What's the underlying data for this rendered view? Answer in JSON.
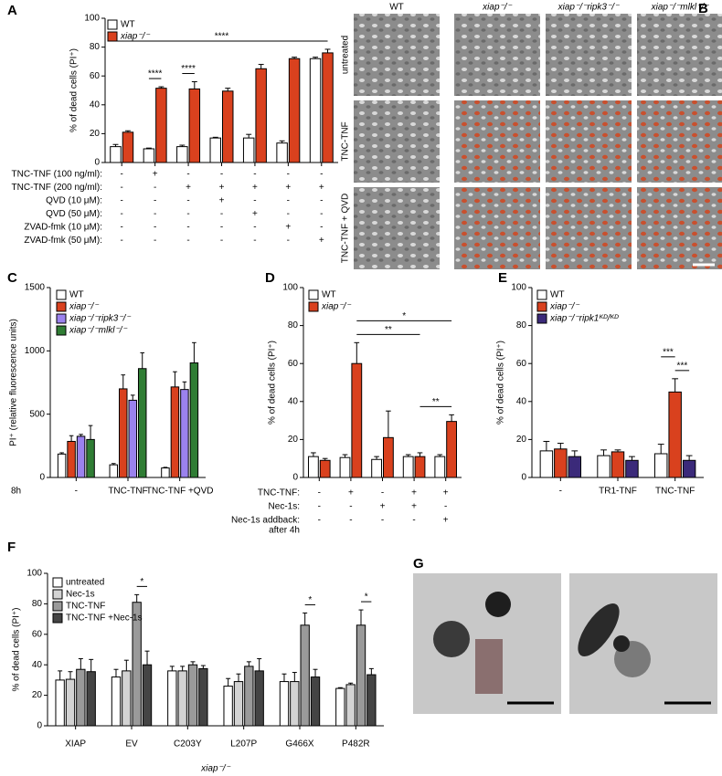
{
  "chart_data": [
    {
      "type": "bar",
      "label": "A",
      "ylabel": "% of dead cells (PI⁺)",
      "ylim": [
        0,
        100
      ],
      "yticks": [
        0,
        20,
        40,
        60,
        80,
        100
      ],
      "categories": [
        null,
        null,
        null,
        null,
        null,
        null,
        null
      ],
      "series": [
        {
          "name": "WT",
          "color": "#ffffff",
          "values": [
            11,
            9.5,
            11,
            17,
            17,
            13.5,
            72
          ],
          "errors": [
            1.5,
            0.5,
            1,
            0.5,
            2.5,
            1.5,
            1
          ]
        },
        {
          "name": "xiap⁻/⁻",
          "color": "#d9411e",
          "values": [
            21,
            51.5,
            51,
            49.5,
            65,
            72,
            76
          ],
          "errors": [
            1,
            1,
            5,
            2,
            3,
            1,
            2.5
          ]
        }
      ],
      "annotations": [
        {
          "text": "****",
          "from": [
            1,
            0
          ],
          "to": [
            1,
            1
          ]
        },
        {
          "text": "****",
          "from": [
            2,
            0
          ],
          "to": [
            2,
            1
          ]
        },
        {
          "text": "****",
          "from": [
            0,
            0
          ],
          "to": [
            6,
            1
          ]
        }
      ],
      "conditions": [
        {
          "label": "TNC-TNF (100 ng/ml):",
          "values": [
            "-",
            "+",
            "-",
            "-",
            "-",
            "-",
            "-"
          ]
        },
        {
          "label": "TNC-TNF (200 ng/ml):",
          "values": [
            "-",
            "-",
            "+",
            "+",
            "+",
            "+",
            "+"
          ]
        },
        {
          "label": "QVD (10 μM):",
          "values": [
            "-",
            "-",
            "-",
            "+",
            "-",
            "-",
            "-"
          ]
        },
        {
          "label": "QVD (50 μM):",
          "values": [
            "-",
            "-",
            "-",
            "-",
            "+",
            "-",
            "-"
          ]
        },
        {
          "label": "ZVAD-fmk (10 μM):",
          "values": [
            "-",
            "-",
            "-",
            "-",
            "-",
            "+",
            "-"
          ]
        },
        {
          "label": "ZVAD-fmk (50 μM):",
          "values": [
            "-",
            "-",
            "-",
            "-",
            "-",
            "-",
            "+"
          ]
        }
      ]
    },
    {
      "type": "bar",
      "label": "C",
      "ylabel": "PI⁺ (relative fluorescence units)",
      "ylim": [
        0,
        1500
      ],
      "yticks": [
        0,
        500,
        1000,
        1500
      ],
      "note": "8h",
      "categories": [
        "-",
        "TNC-TNF",
        "TNC-TNF +QVD"
      ],
      "series": [
        {
          "name": "WT",
          "color": "#ffffff",
          "values": [
            185,
            100,
            75
          ],
          "errors": [
            10,
            10,
            5
          ]
        },
        {
          "name": "xiap⁻/⁻",
          "color": "#d9411e",
          "values": [
            285,
            700,
            715
          ],
          "errors": [
            45,
            110,
            120
          ]
        },
        {
          "name": "xiap⁻/⁻ripk3⁻/⁻",
          "color": "#9b82ee",
          "values": [
            325,
            610,
            695
          ],
          "errors": [
            15,
            40,
            60
          ]
        },
        {
          "name": "xiap⁻/⁻mlkl⁻/⁻",
          "color": "#2f7d34",
          "values": [
            300,
            860,
            905
          ],
          "errors": [
            110,
            125,
            160
          ]
        }
      ]
    },
    {
      "type": "bar",
      "label": "D",
      "ylabel": "% of dead cells (PI⁺)",
      "ylim": [
        0,
        100
      ],
      "yticks": [
        0,
        20,
        40,
        60,
        80,
        100
      ],
      "categories": [
        null,
        null,
        null,
        null,
        null
      ],
      "series": [
        {
          "name": "WT",
          "color": "#ffffff",
          "values": [
            11,
            10.5,
            9.5,
            11,
            11
          ],
          "errors": [
            2,
            1.5,
            1.5,
            1,
            1
          ]
        },
        {
          "name": "xiap⁻/⁻",
          "color": "#d9411e",
          "values": [
            9,
            60,
            21,
            11,
            29.5
          ],
          "errors": [
            1,
            11,
            14,
            2,
            3.5
          ]
        }
      ],
      "annotations": [
        {
          "text": "**",
          "from": [
            1,
            1
          ],
          "to": [
            3,
            1
          ]
        },
        {
          "text": "*",
          "from": [
            1,
            1
          ],
          "to": [
            4,
            1
          ]
        },
        {
          "text": "**",
          "from": [
            3,
            1
          ],
          "to": [
            4,
            1
          ]
        }
      ],
      "conditions": [
        {
          "label": [
            "TNC-TNF:"
          ],
          "values": [
            "-",
            "+",
            "-",
            "+",
            "+"
          ]
        },
        {
          "label": [
            "Nec-1s:"
          ],
          "values": [
            "-",
            "-",
            "+",
            "+",
            "-"
          ]
        },
        {
          "label": [
            "Nec-1s addback:",
            "after 4h"
          ],
          "values": [
            "-",
            "-",
            "-",
            "-",
            "+"
          ]
        }
      ]
    },
    {
      "type": "bar",
      "label": "E",
      "ylabel": "% of dead cells (PI⁺)",
      "ylim": [
        0,
        100
      ],
      "yticks": [
        0,
        20,
        40,
        60,
        80,
        100
      ],
      "categories": [
        "-",
        "TR1-TNF",
        "TNC-TNF"
      ],
      "series": [
        {
          "name": "WT",
          "color": "#ffffff",
          "values": [
            14,
            11.5,
            12.5
          ],
          "errors": [
            5,
            3,
            5
          ]
        },
        {
          "name": "xiap⁻/⁻",
          "color": "#d9411e",
          "values": [
            15,
            13.5,
            45
          ],
          "errors": [
            3,
            1,
            7
          ]
        },
        {
          "name": "xiap⁻/⁻ripk1ᴷᴰ/ᴷᴰ",
          "color": "#3b2a7a",
          "values": [
            11,
            9,
            9
          ],
          "errors": [
            3,
            2,
            2.5
          ]
        }
      ],
      "annotations": [
        {
          "text": "***",
          "from": [
            2,
            1
          ],
          "to": [
            2,
            2
          ]
        },
        {
          "text": "***",
          "from": [
            2,
            0
          ],
          "to": [
            2,
            1
          ]
        }
      ]
    },
    {
      "type": "bar",
      "label": "F",
      "ylabel": "% of dead cells (PI⁺)",
      "xlabel": "xiap⁻/⁻",
      "ylim": [
        0,
        100
      ],
      "yticks": [
        0,
        20,
        40,
        60,
        80,
        100
      ],
      "categories": [
        "XIAP",
        "EV",
        "C203Y",
        "L207P",
        "G466X",
        "P482R"
      ],
      "series": [
        {
          "name": "untreated",
          "color": "#ffffff",
          "values": [
            30,
            32,
            36,
            26,
            29,
            24.5
          ],
          "errors": [
            6,
            5,
            3,
            5,
            5,
            0.5
          ]
        },
        {
          "name": "Nec-1s",
          "color": "#d3d3d3",
          "values": [
            30.5,
            36,
            36,
            29,
            29,
            27
          ],
          "errors": [
            5,
            7,
            3,
            5,
            6,
            1
          ]
        },
        {
          "name": "TNC-TNF",
          "color": "#9a9a9a",
          "values": [
            37,
            81,
            40,
            39,
            66,
            66
          ],
          "errors": [
            7,
            5,
            2,
            3,
            8,
            10
          ]
        },
        {
          "name": "TNC-TNF +Nec-1s",
          "color": "#444444",
          "values": [
            35.5,
            40,
            37.5,
            36,
            32,
            33.5
          ],
          "errors": [
            8,
            9,
            2,
            8,
            5,
            4
          ]
        }
      ],
      "annotations": [
        {
          "text": "*",
          "from": [
            1,
            2
          ],
          "to": [
            1,
            3
          ]
        },
        {
          "text": "*",
          "from": [
            4,
            2
          ],
          "to": [
            4,
            3
          ]
        },
        {
          "text": "*",
          "from": [
            5,
            2
          ],
          "to": [
            5,
            3
          ]
        }
      ]
    }
  ],
  "image_panel_b": {
    "label": "B",
    "columns": [
      "WT",
      "xiap⁻/⁻",
      "xiap⁻/⁻ripk3⁻/⁻",
      "xiap⁻/⁻mlkl⁻/⁻"
    ],
    "rows": [
      "untreated",
      "TNC-TNF",
      "TNC-TNF + QVD"
    ]
  },
  "image_panel_g": {
    "label": "G"
  }
}
